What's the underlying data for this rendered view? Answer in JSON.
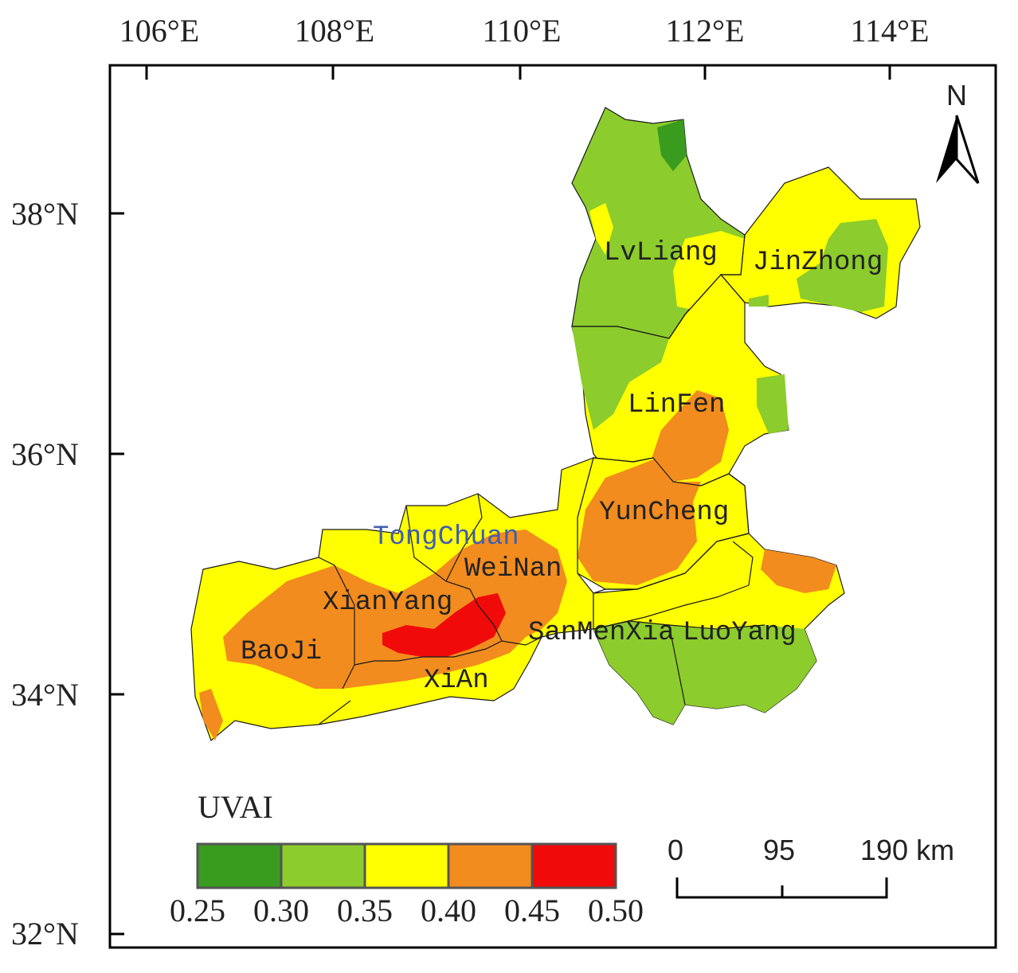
{
  "map": {
    "longitude_labels": [
      "106°E",
      "108°E",
      "110°E",
      "112°E",
      "114°E"
    ],
    "latitude_labels": [
      "38°N",
      "36°N",
      "34°N",
      "32°N"
    ],
    "north_label": "N",
    "city_labels": {
      "lvliang": "LvLiang",
      "jinzhong": "JinZhong",
      "linfen": "LinFen",
      "yuncheng": "YunCheng",
      "tongchuan": "TongChuan",
      "weinan": "WeiNan",
      "xianyang": "XianYang",
      "baoji": "BaoJi",
      "sanmenxia": "SanMenXia",
      "luoyang": "LuoYang",
      "xian": "XiAn"
    },
    "legend": {
      "title": "UVAI",
      "bins": [
        {
          "range": [
            0.25,
            0.3
          ],
          "color": "#3a9c1f"
        },
        {
          "range": [
            0.3,
            0.35
          ],
          "color": "#8ccc2c"
        },
        {
          "range": [
            0.35,
            0.4
          ],
          "color": "#ffff00"
        },
        {
          "range": [
            0.4,
            0.45
          ],
          "color": "#f28c1e"
        },
        {
          "range": [
            0.45,
            0.5
          ],
          "color": "#f00a0a"
        }
      ],
      "tick_labels": [
        "0.25",
        "0.30",
        "0.35",
        "0.40",
        "0.45",
        "0.50"
      ]
    },
    "scale_bar": {
      "labels": [
        "0",
        "95",
        "190 km"
      ]
    }
  }
}
